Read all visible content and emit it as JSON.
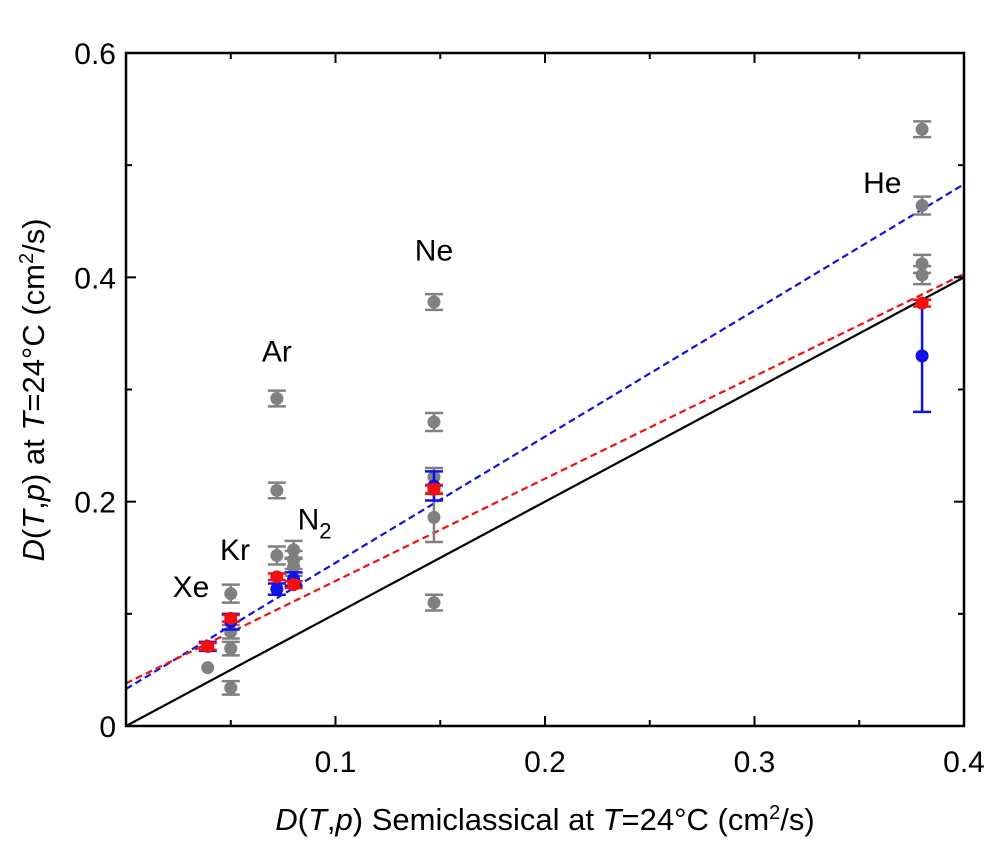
{
  "chart_data": {
    "type": "scatter",
    "xlabel": "D(T,p) Semiclassical at T=24°C (cm²/s)",
    "ylabel": "D(T,p) at T=24°C (cm²/s)",
    "xlim": [
      0,
      0.4
    ],
    "ylim": [
      0,
      0.6
    ],
    "x_ticks": [
      "0.1",
      "0.2",
      "0.3",
      "0.4"
    ],
    "y_ticks": [
      "0",
      "0.2",
      "0.4",
      "0.6"
    ],
    "gas_labels": [
      {
        "text": "Xe",
        "x": 0.031,
        "y": 0.115
      },
      {
        "text": "Kr",
        "x": 0.052,
        "y": 0.148
      },
      {
        "text": "Ar",
        "x": 0.072,
        "y": 0.325
      },
      {
        "text": "N",
        "sub": "2",
        "x": 0.09,
        "y": 0.175
      },
      {
        "text": "Ne",
        "x": 0.147,
        "y": 0.415
      },
      {
        "text": "He",
        "x": 0.361,
        "y": 0.475
      }
    ],
    "series": [
      {
        "color": "#808080",
        "points": [
          {
            "x": 0.039,
            "y": 0.052,
            "err": 0
          },
          {
            "x": 0.05,
            "y": 0.118,
            "err": 0.008
          },
          {
            "x": 0.05,
            "y": 0.084,
            "err": 0.006
          },
          {
            "x": 0.05,
            "y": 0.069,
            "err": 0.006
          },
          {
            "x": 0.05,
            "y": 0.034,
            "err": 0.006
          },
          {
            "x": 0.072,
            "y": 0.292,
            "err": 0.007
          },
          {
            "x": 0.072,
            "y": 0.21,
            "err": 0.007
          },
          {
            "x": 0.072,
            "y": 0.152,
            "err": 0.008
          },
          {
            "x": 0.08,
            "y": 0.157,
            "err": 0.008
          },
          {
            "x": 0.08,
            "y": 0.148,
            "err": 0.008
          },
          {
            "x": 0.08,
            "y": 0.142,
            "err": 0.008
          },
          {
            "x": 0.147,
            "y": 0.378,
            "err": 0.007
          },
          {
            "x": 0.147,
            "y": 0.271,
            "err": 0.008
          },
          {
            "x": 0.147,
            "y": 0.222,
            "err": 0.008
          },
          {
            "x": 0.147,
            "y": 0.186,
            "err": 0.022
          },
          {
            "x": 0.147,
            "y": 0.11,
            "err": 0.007
          },
          {
            "x": 0.38,
            "y": 0.532,
            "err": 0.007
          },
          {
            "x": 0.38,
            "y": 0.464,
            "err": 0.008
          },
          {
            "x": 0.38,
            "y": 0.412,
            "err": 0.008
          },
          {
            "x": 0.38,
            "y": 0.402,
            "err": 0.008
          }
        ]
      },
      {
        "color": "#1010e8",
        "points": [
          {
            "x": 0.039,
            "y": 0.071,
            "err": 0.004
          },
          {
            "x": 0.05,
            "y": 0.093,
            "err": 0.007
          },
          {
            "x": 0.072,
            "y": 0.122,
            "err": 0.005
          },
          {
            "x": 0.08,
            "y": 0.131,
            "err": 0.006
          },
          {
            "x": 0.147,
            "y": 0.214,
            "err": 0.013
          },
          {
            "x": 0.38,
            "y": 0.33,
            "err": 0.05
          }
        ]
      },
      {
        "color": "#f01010",
        "points": [
          {
            "x": 0.039,
            "y": 0.071,
            "err": 0.003
          },
          {
            "x": 0.05,
            "y": 0.096,
            "err": 0.003
          },
          {
            "x": 0.072,
            "y": 0.133,
            "err": 0.003
          },
          {
            "x": 0.08,
            "y": 0.126,
            "err": 0.003
          },
          {
            "x": 0.147,
            "y": 0.211,
            "err": 0.004
          },
          {
            "x": 0.38,
            "y": 0.377,
            "err": 0.003
          }
        ]
      }
    ],
    "lines": [
      {
        "color": "#000000",
        "dashed": false,
        "x": [
          0,
          0.4
        ],
        "y": [
          0,
          0.4
        ]
      },
      {
        "color": "#1010e8",
        "dashed": true,
        "x": [
          0,
          0.4
        ],
        "y": [
          0.033,
          0.483
        ]
      },
      {
        "color": "#f01010",
        "dashed": true,
        "x": [
          0,
          0.4
        ],
        "y": [
          0.038,
          0.403
        ]
      }
    ],
    "grid": false
  }
}
